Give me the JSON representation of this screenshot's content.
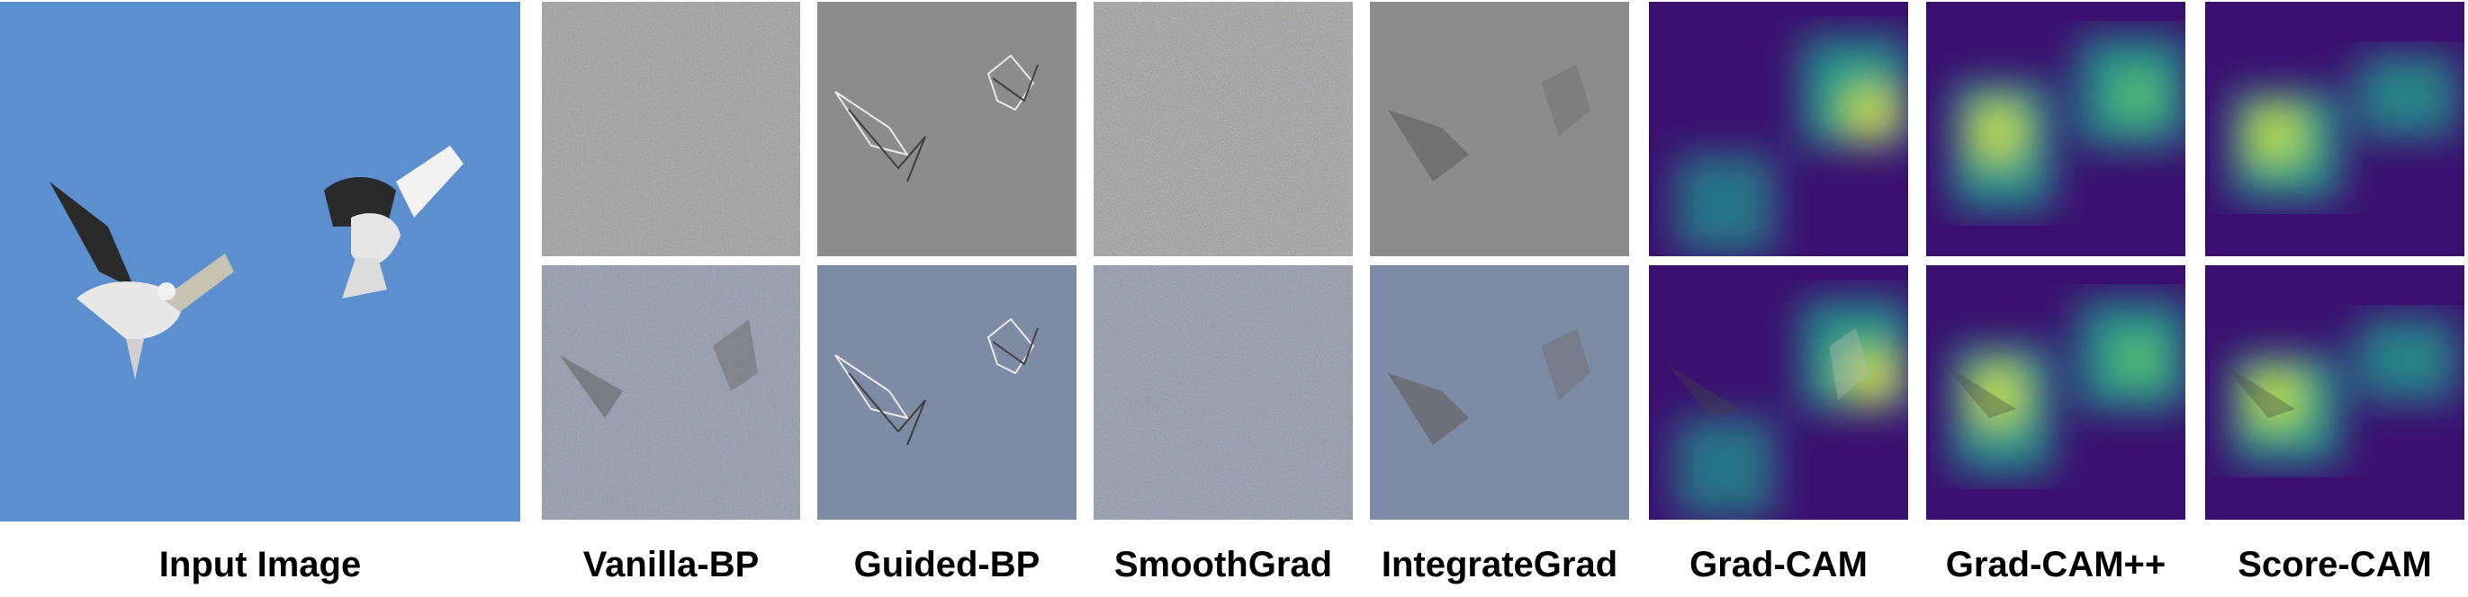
{
  "figure": {
    "labels": {
      "input": "Input Image",
      "vanilla": "Vanilla-BP",
      "guided": "Guided-BP",
      "smooth": "SmoothGrad",
      "integrate": "IntegrateGrad",
      "gradcam": "Grad-CAM",
      "gradcampp": "Grad-CAM++",
      "scorecam": "Score-CAM"
    }
  },
  "colors": {
    "sky": "#5b8fd0",
    "gray_map": "#8c8c8c",
    "overlay_gray": "#7d8ba4",
    "viridis_dark": "#3b0f6f",
    "viridis_teal": "#21918c",
    "viridis_green": "#5ec962",
    "viridis_yellow": "#fde725"
  }
}
